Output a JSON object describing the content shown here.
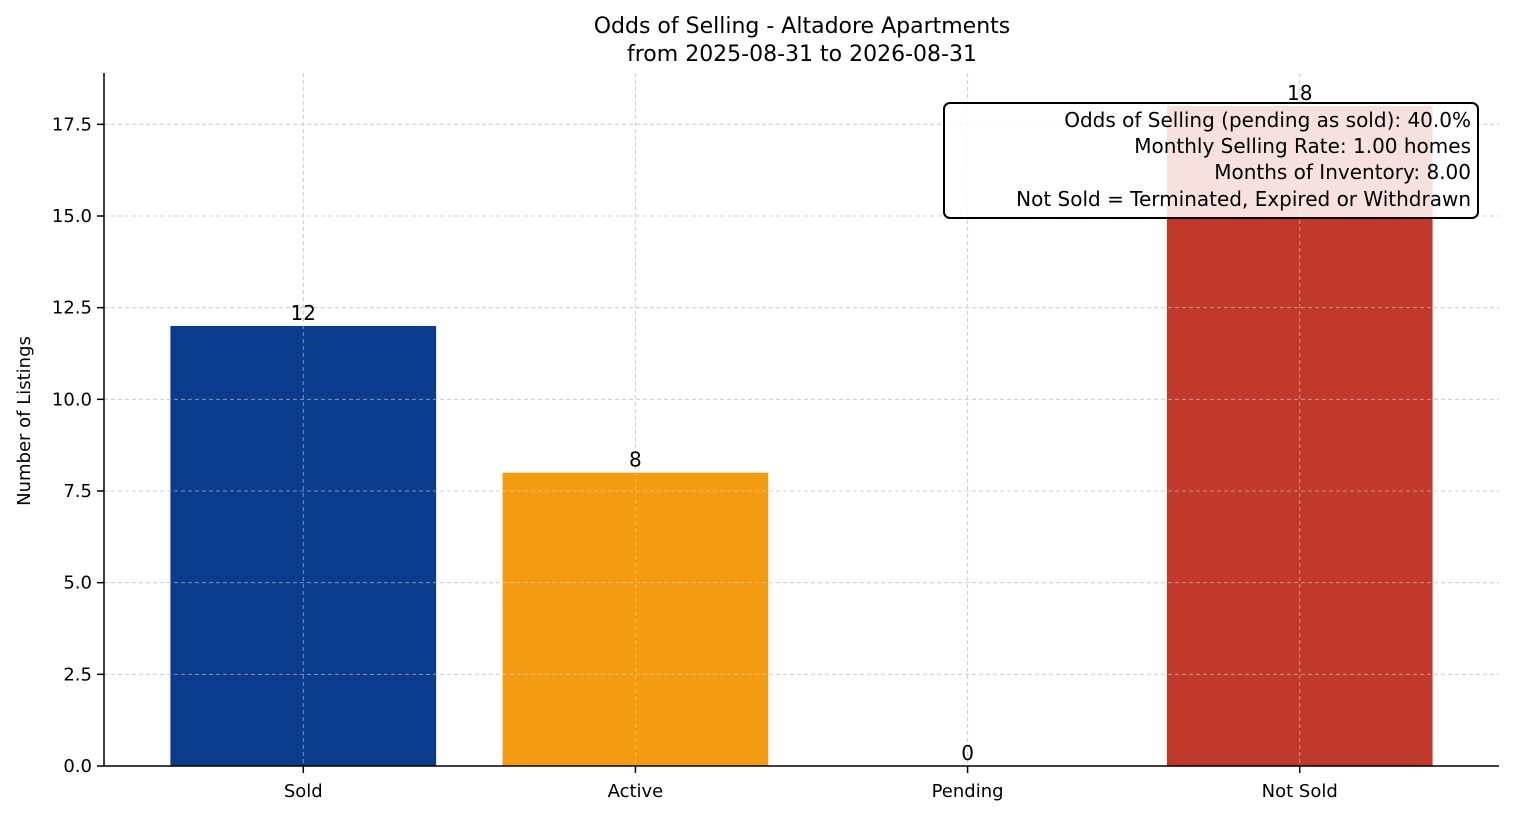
{
  "chart_data": {
    "type": "bar",
    "title": "Odds of Selling - Altadore Apartments",
    "subtitle": "from 2025-08-31 to 2026-08-31",
    "ylabel": "Number of Listings",
    "xlabel": "",
    "categories": [
      "Sold",
      "Active",
      "Pending",
      "Not Sold"
    ],
    "values": [
      12,
      8,
      0,
      18
    ],
    "data_labels": [
      "12",
      "8",
      "0",
      "18"
    ],
    "colors": [
      "#0b3b8c",
      "#f39c12",
      "#2e8b57",
      "#c0392b"
    ],
    "ylim": [
      0,
      18.9
    ],
    "yticks": [
      0.0,
      2.5,
      5.0,
      7.5,
      10.0,
      12.5,
      15.0,
      17.5
    ],
    "ytick_labels": [
      "0.0",
      "2.5",
      "5.0",
      "7.5",
      "10.0",
      "12.5",
      "15.0",
      "17.5"
    ],
    "grid": true,
    "annotation_lines": [
      "Odds of Selling (pending as sold): 40.0%",
      "Monthly Selling Rate: 1.00 homes",
      "Months of Inventory: 8.00",
      "Not Sold = Terminated, Expired or Withdrawn"
    ],
    "annotation_placement": "top-right"
  }
}
